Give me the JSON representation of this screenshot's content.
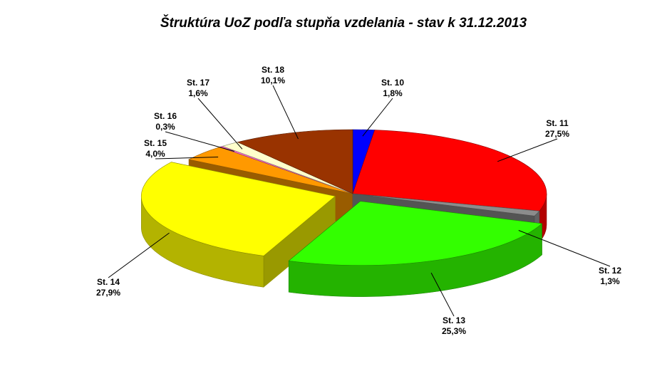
{
  "chart_data": {
    "type": "pie3d",
    "title": "Štruktúra UoZ podľa stupňa vzdelania - stav k 31.12.2013",
    "categories": [
      "St. 10",
      "St. 11",
      "St. 12",
      "St. 13",
      "St. 14",
      "St. 15",
      "St. 16",
      "St. 17",
      "St. 18"
    ],
    "values": [
      1.8,
      27.5,
      1.3,
      25.3,
      27.9,
      4.0,
      0.3,
      1.6,
      10.1
    ],
    "value_labels": [
      "1,8%",
      "27,5%",
      "1,3%",
      "25,3%",
      "27,9%",
      "4,0%",
      "0,3%",
      "1,6%",
      "10,1%"
    ],
    "colors": [
      "#0000ff",
      "#ff0000",
      "#8c8c8c",
      "#33ff00",
      "#ffff00",
      "#ff9900",
      "#ff66cc",
      "#ffffcc",
      "#993300"
    ]
  }
}
